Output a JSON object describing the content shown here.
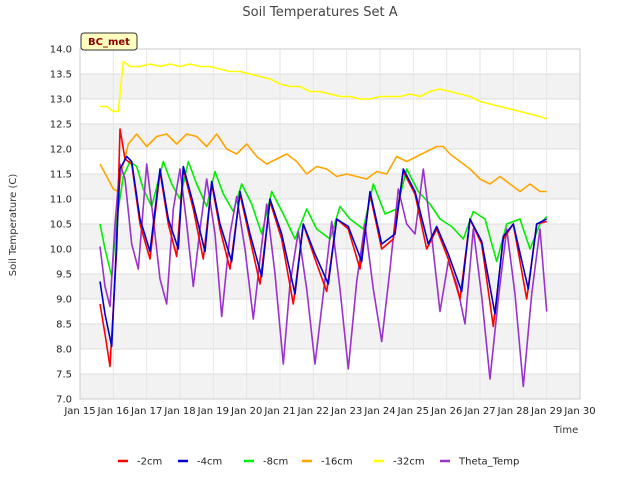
{
  "chart_data": {
    "type": "line",
    "title": "Soil Temperatures Set A",
    "xlabel": "Time",
    "ylabel": "Soil Temperature (C)",
    "badge": "BC_met",
    "xlim": [
      15,
      30
    ],
    "ylim": [
      7.0,
      14.0
    ],
    "x_ticks": [
      15,
      16,
      17,
      18,
      19,
      20,
      21,
      22,
      23,
      24,
      25,
      26,
      27,
      28,
      29,
      30
    ],
    "x_tick_labels": [
      "Jan 15",
      "Jan 16",
      "Jan 17",
      "Jan 18",
      "Jan 19",
      "Jan 20",
      "Jan 21",
      "Jan 22",
      "Jan 23",
      "Jan 24",
      "Jan 25",
      "Jan 26",
      "Jan 27",
      "Jan 28",
      "Jan 29",
      "Jan 30"
    ],
    "y_ticks": [
      7.0,
      7.5,
      8.0,
      8.5,
      9.0,
      9.5,
      10.0,
      10.5,
      11.0,
      11.5,
      12.0,
      12.5,
      13.0,
      13.5,
      14.0
    ],
    "y_tick_labels": [
      "7.0",
      "7.5",
      "8.0",
      "8.5",
      "9.0",
      "9.5",
      "10.0",
      "10.5",
      "11.0",
      "11.5",
      "12.0",
      "12.5",
      "13.0",
      "13.5",
      "14.0"
    ],
    "grid": true,
    "legend_position": "bottom",
    "series": [
      {
        "name": "-2cm",
        "color": "#ff0000",
        "x": [
          15.6,
          15.75,
          15.9,
          16.1,
          16.2,
          16.35,
          16.55,
          16.8,
          17.1,
          17.4,
          17.65,
          17.9,
          18.1,
          18.4,
          18.7,
          18.95,
          19.2,
          19.5,
          19.8,
          20.1,
          20.4,
          20.7,
          21.05,
          21.4,
          21.7,
          22.05,
          22.4,
          22.7,
          23.05,
          23.4,
          23.7,
          24.05,
          24.4,
          24.7,
          25.05,
          25.4,
          25.7,
          26.05,
          26.4,
          26.7,
          27.05,
          27.4,
          27.7,
          28.0,
          28.4,
          28.7,
          29.0
        ],
        "y": [
          8.9,
          8.3,
          7.65,
          10.0,
          12.4,
          11.8,
          11.7,
          10.5,
          9.8,
          11.55,
          10.5,
          9.85,
          11.6,
          10.8,
          9.8,
          11.3,
          10.4,
          9.6,
          11.1,
          10.2,
          9.3,
          10.95,
          10.2,
          8.9,
          10.5,
          9.8,
          9.15,
          10.6,
          10.4,
          9.6,
          11.1,
          10.0,
          10.2,
          11.55,
          11.1,
          10.0,
          10.4,
          9.8,
          9.0,
          10.6,
          10.1,
          8.45,
          10.2,
          10.5,
          9.0,
          10.5,
          10.55
        ]
      },
      {
        "name": "-4cm",
        "color": "#0000cc",
        "x": [
          15.6,
          15.75,
          15.95,
          16.1,
          16.2,
          16.4,
          16.55,
          16.8,
          17.1,
          17.4,
          17.65,
          17.95,
          18.1,
          18.4,
          18.75,
          18.95,
          19.2,
          19.55,
          19.8,
          20.1,
          20.45,
          20.7,
          21.05,
          21.45,
          21.7,
          22.05,
          22.45,
          22.7,
          23.05,
          23.45,
          23.7,
          24.05,
          24.45,
          24.7,
          25.05,
          25.45,
          25.7,
          26.05,
          26.45,
          26.7,
          27.05,
          27.45,
          27.7,
          28.0,
          28.45,
          28.7,
          29.0
        ],
        "y": [
          9.35,
          8.7,
          8.05,
          10.2,
          11.6,
          11.85,
          11.75,
          10.6,
          9.95,
          11.6,
          10.6,
          10.0,
          11.65,
          10.9,
          9.95,
          11.35,
          10.5,
          9.75,
          11.15,
          10.3,
          9.45,
          11.0,
          10.3,
          9.1,
          10.5,
          9.9,
          9.3,
          10.6,
          10.45,
          9.75,
          11.15,
          10.1,
          10.3,
          11.6,
          11.15,
          10.1,
          10.45,
          9.9,
          9.15,
          10.6,
          10.15,
          8.7,
          10.25,
          10.5,
          9.2,
          10.5,
          10.6
        ]
      },
      {
        "name": "-8cm",
        "color": "#00ee00",
        "x": [
          15.6,
          15.75,
          15.95,
          16.1,
          16.3,
          16.5,
          16.7,
          16.9,
          17.15,
          17.5,
          17.75,
          18.0,
          18.25,
          18.5,
          18.8,
          19.05,
          19.3,
          19.6,
          19.85,
          20.15,
          20.45,
          20.75,
          21.1,
          21.45,
          21.8,
          22.1,
          22.5,
          22.8,
          23.1,
          23.5,
          23.8,
          24.15,
          24.5,
          24.8,
          25.15,
          25.5,
          25.8,
          26.15,
          26.5,
          26.8,
          27.15,
          27.5,
          27.8,
          28.2,
          28.5,
          28.8,
          29.0
        ],
        "y": [
          10.5,
          10.0,
          9.45,
          10.6,
          11.45,
          11.75,
          11.65,
          11.2,
          10.85,
          11.75,
          11.3,
          11.0,
          11.75,
          11.3,
          10.85,
          11.55,
          11.1,
          10.75,
          11.3,
          10.9,
          10.3,
          11.15,
          10.7,
          10.2,
          10.8,
          10.4,
          10.2,
          10.85,
          10.6,
          10.4,
          11.3,
          10.7,
          10.8,
          11.6,
          11.15,
          10.9,
          10.6,
          10.45,
          10.2,
          10.75,
          10.6,
          9.75,
          10.5,
          10.6,
          10.0,
          10.5,
          10.65
        ]
      },
      {
        "name": "-16cm",
        "color": "#ffa500",
        "x": [
          15.6,
          15.8,
          16.0,
          16.15,
          16.25,
          16.45,
          16.7,
          17.0,
          17.3,
          17.6,
          17.9,
          18.2,
          18.5,
          18.8,
          19.1,
          19.4,
          19.7,
          20.0,
          20.3,
          20.6,
          20.9,
          21.2,
          21.5,
          21.8,
          22.1,
          22.4,
          22.7,
          23.0,
          23.3,
          23.6,
          23.9,
          24.2,
          24.5,
          24.8,
          25.1,
          25.4,
          25.7,
          25.9,
          26.1,
          26.4,
          26.7,
          27.0,
          27.3,
          27.6,
          27.9,
          28.2,
          28.5,
          28.8,
          29.0
        ],
        "y": [
          11.7,
          11.45,
          11.2,
          11.15,
          11.55,
          12.1,
          12.3,
          12.05,
          12.25,
          12.3,
          12.1,
          12.3,
          12.25,
          12.05,
          12.3,
          12.0,
          11.9,
          12.1,
          11.85,
          11.7,
          11.8,
          11.9,
          11.75,
          11.5,
          11.65,
          11.6,
          11.45,
          11.5,
          11.45,
          11.4,
          11.55,
          11.5,
          11.85,
          11.75,
          11.85,
          11.95,
          12.05,
          12.05,
          11.9,
          11.75,
          11.6,
          11.4,
          11.3,
          11.45,
          11.3,
          11.15,
          11.3,
          11.15,
          11.15
        ]
      },
      {
        "name": "-32cm",
        "color": "#ffff00",
        "x": [
          15.6,
          15.8,
          16.0,
          16.15,
          16.3,
          16.5,
          16.8,
          17.1,
          17.4,
          17.7,
          18.0,
          18.3,
          18.6,
          18.9,
          19.2,
          19.5,
          19.8,
          20.1,
          20.4,
          20.7,
          21.0,
          21.3,
          21.6,
          21.9,
          22.2,
          22.5,
          22.8,
          23.1,
          23.4,
          23.7,
          24.0,
          24.3,
          24.6,
          24.9,
          25.2,
          25.5,
          25.8,
          26.1,
          26.4,
          26.7,
          27.0,
          27.3,
          27.6,
          27.9,
          28.2,
          28.5,
          28.8,
          29.0
        ],
        "y": [
          12.85,
          12.85,
          12.75,
          12.75,
          13.75,
          13.65,
          13.65,
          13.7,
          13.65,
          13.7,
          13.65,
          13.7,
          13.65,
          13.65,
          13.6,
          13.55,
          13.55,
          13.5,
          13.45,
          13.4,
          13.3,
          13.25,
          13.25,
          13.15,
          13.15,
          13.1,
          13.05,
          13.05,
          13.0,
          13.0,
          13.05,
          13.05,
          13.05,
          13.1,
          13.05,
          13.15,
          13.2,
          13.15,
          13.1,
          13.05,
          12.95,
          12.9,
          12.85,
          12.8,
          12.75,
          12.7,
          12.65,
          12.6
        ]
      },
      {
        "name": "Theta_Temp",
        "color": "#9933cc",
        "x": [
          15.6,
          15.75,
          15.9,
          16.05,
          16.2,
          16.35,
          16.55,
          16.75,
          17.0,
          17.2,
          17.4,
          17.6,
          17.8,
          18.0,
          18.2,
          18.4,
          18.6,
          18.8,
          19.05,
          19.25,
          19.5,
          19.7,
          19.95,
          20.2,
          20.4,
          20.6,
          20.85,
          21.1,
          21.3,
          21.55,
          21.8,
          22.05,
          22.3,
          22.55,
          22.8,
          23.05,
          23.3,
          23.55,
          23.8,
          24.05,
          24.3,
          24.55,
          24.8,
          25.05,
          25.3,
          25.55,
          25.8,
          26.05,
          26.3,
          26.55,
          26.8,
          27.05,
          27.3,
          27.55,
          27.8,
          28.05,
          28.3,
          28.55,
          28.8,
          29.0
        ],
        "y": [
          10.05,
          9.25,
          8.85,
          10.5,
          11.7,
          11.4,
          10.1,
          9.6,
          11.7,
          10.6,
          9.4,
          8.9,
          10.8,
          11.6,
          10.5,
          9.25,
          10.4,
          11.4,
          10.3,
          8.65,
          10.3,
          11.05,
          10.0,
          8.6,
          9.8,
          10.9,
          9.5,
          7.7,
          9.3,
          10.35,
          9.2,
          7.7,
          9.1,
          10.55,
          9.2,
          7.6,
          9.35,
          10.5,
          9.2,
          8.15,
          9.6,
          11.2,
          10.5,
          10.3,
          11.6,
          10.25,
          8.75,
          9.75,
          9.3,
          8.5,
          10.4,
          9.05,
          7.4,
          9.0,
          10.4,
          9.1,
          7.25,
          9.1,
          10.4,
          8.75
        ]
      }
    ]
  }
}
